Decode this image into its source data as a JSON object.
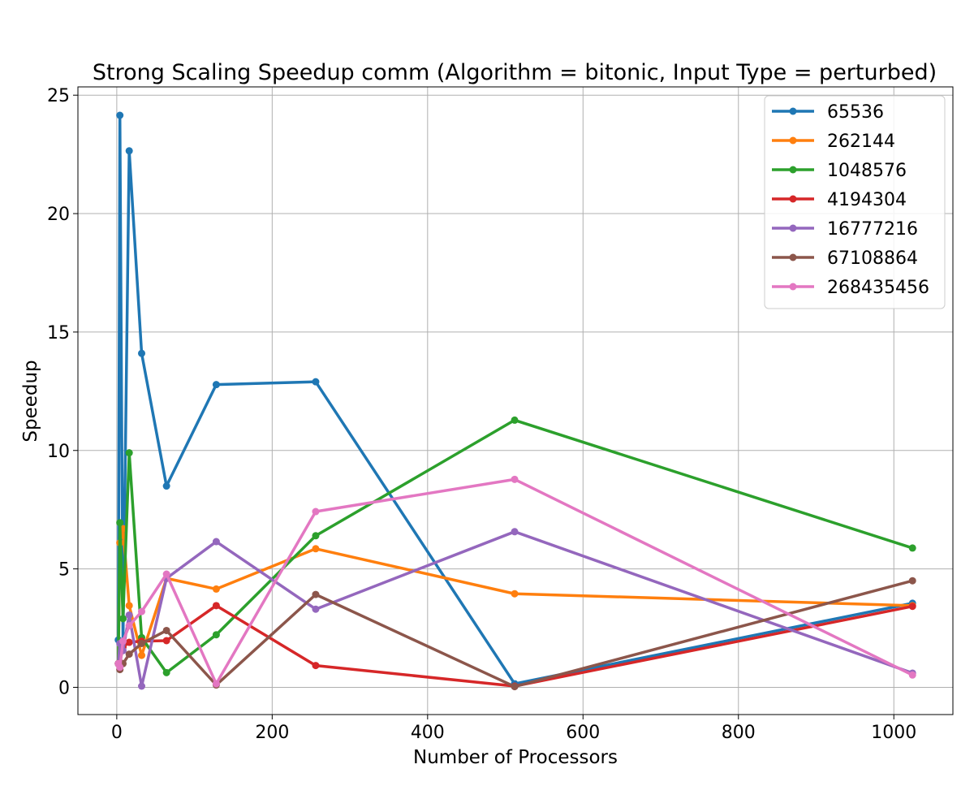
{
  "chart_data": {
    "type": "line",
    "title": "Strong Scaling Speedup comm (Algorithm = bitonic, Input Type = perturbed)",
    "xlabel": "Number of Processors",
    "ylabel": "Speedup",
    "xlim": [
      -50,
      1076
    ],
    "ylim": [
      -1.15,
      25.35
    ],
    "xticks": [
      0,
      200,
      400,
      600,
      800,
      1000
    ],
    "yticks": [
      0,
      5,
      10,
      15,
      20,
      25
    ],
    "grid": true,
    "legend_position": "top-right",
    "x": [
      2,
      4,
      8,
      16,
      32,
      64,
      128,
      256,
      512,
      1024
    ],
    "series": [
      {
        "name": "65536",
        "color": "#1f77b4",
        "values": [
          2.0,
          24.15,
          1.9,
          22.65,
          14.1,
          8.5,
          12.78,
          12.9,
          0.15,
          3.55
        ]
      },
      {
        "name": "262144",
        "color": "#ff7f0e",
        "values": [
          1.0,
          6.1,
          6.7,
          3.45,
          1.35,
          4.6,
          4.15,
          5.85,
          3.95,
          3.45
        ]
      },
      {
        "name": "1048576",
        "color": "#2ca02c",
        "values": [
          1.0,
          6.95,
          2.9,
          9.9,
          2.1,
          0.62,
          2.22,
          6.4,
          11.28,
          5.88
        ]
      },
      {
        "name": "4194304",
        "color": "#d62728",
        "values": [
          1.0,
          1.05,
          1.7,
          1.9,
          1.95,
          1.97,
          3.45,
          0.92,
          0.05,
          3.42
        ]
      },
      {
        "name": "16777216",
        "color": "#9467bd",
        "values": [
          1.0,
          1.85,
          1.55,
          3.05,
          0.05,
          4.6,
          6.15,
          3.3,
          6.57,
          0.6
        ]
      },
      {
        "name": "67108864",
        "color": "#8c564b",
        "values": [
          1.0,
          0.75,
          1.0,
          1.4,
          1.85,
          2.4,
          0.1,
          3.92,
          0.03,
          4.5
        ]
      },
      {
        "name": "268435456",
        "color": "#e377c2",
        "values": [
          1.0,
          0.85,
          1.95,
          2.6,
          3.2,
          4.78,
          0.15,
          7.42,
          8.78,
          0.52
        ]
      }
    ]
  }
}
